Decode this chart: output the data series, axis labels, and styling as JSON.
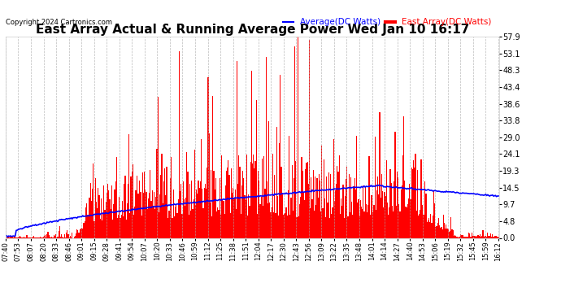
{
  "title": "East Array Actual & Running Average Power Wed Jan 10 16:17",
  "copyright": "Copyright 2024 Cartronics.com",
  "legend_avg": "Average(DC Watts)",
  "legend_east": "East Array(DC Watts)",
  "legend_avg_color": "blue",
  "legend_east_color": "red",
  "ylabel_right_ticks": [
    0.0,
    4.8,
    9.7,
    14.5,
    19.3,
    24.1,
    29.0,
    33.8,
    38.6,
    43.4,
    48.3,
    53.1,
    57.9
  ],
  "ylim": [
    0,
    57.9
  ],
  "background_color": "#ffffff",
  "grid_color": "#aaaaaa",
  "bar_color": "red",
  "avg_line_color": "blue",
  "title_fontsize": 11,
  "xtick_labels": [
    "07:40",
    "07:53",
    "08:07",
    "08:20",
    "08:33",
    "08:46",
    "09:01",
    "09:15",
    "09:28",
    "09:41",
    "09:54",
    "10:07",
    "10:20",
    "10:33",
    "10:46",
    "10:59",
    "11:12",
    "11:25",
    "11:38",
    "11:51",
    "12:04",
    "12:17",
    "12:30",
    "12:43",
    "12:56",
    "13:09",
    "13:22",
    "13:35",
    "13:48",
    "14:01",
    "14:14",
    "14:27",
    "14:40",
    "14:53",
    "15:06",
    "15:19",
    "15:32",
    "15:45",
    "15:59",
    "16:12"
  ]
}
